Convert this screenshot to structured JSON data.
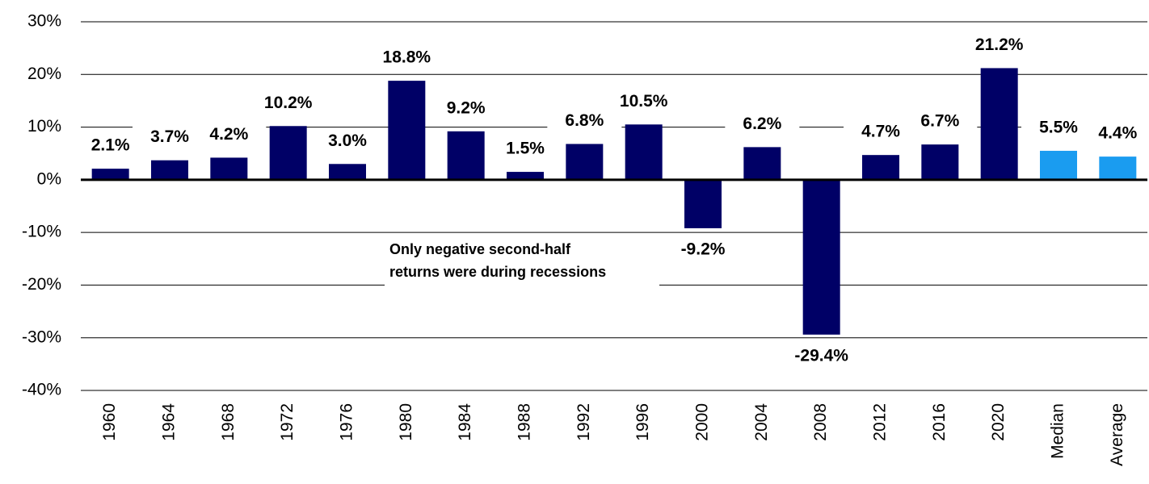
{
  "chart_data": {
    "type": "bar",
    "categories": [
      "1960",
      "1964",
      "1968",
      "1972",
      "1976",
      "1980",
      "1984",
      "1988",
      "1992",
      "1996",
      "2000",
      "2004",
      "2008",
      "2012",
      "2016",
      "2020",
      "Median",
      "Average"
    ],
    "values": [
      2.1,
      3.7,
      4.2,
      10.2,
      3.0,
      18.8,
      9.2,
      1.5,
      6.8,
      10.5,
      -9.2,
      6.2,
      -29.4,
      4.7,
      6.7,
      21.2,
      5.5,
      4.4
    ],
    "value_labels": [
      "2.1%",
      "3.7%",
      "4.2%",
      "10.2%",
      "3.0%",
      "18.8%",
      "9.2%",
      "1.5%",
      "6.8%",
      "10.5%",
      "-9.2%",
      "6.2%",
      "-29.4%",
      "4.7%",
      "6.7%",
      "21.2%",
      "5.5%",
      "4.4%"
    ],
    "colors": [
      "#000066",
      "#000066",
      "#000066",
      "#000066",
      "#000066",
      "#000066",
      "#000066",
      "#000066",
      "#000066",
      "#000066",
      "#000066",
      "#000066",
      "#000066",
      "#000066",
      "#000066",
      "#000066",
      "#1a9cf0",
      "#1a9cf0"
    ],
    "ylim": [
      -40,
      30
    ],
    "yticks": [
      {
        "value": -40,
        "label": "-40%"
      },
      {
        "value": -30,
        "label": "-30%"
      },
      {
        "value": -20,
        "label": "-20%"
      },
      {
        "value": -10,
        "label": "-10%"
      },
      {
        "value": 0,
        "label": "0%"
      },
      {
        "value": 10,
        "label": "10%"
      },
      {
        "value": 20,
        "label": "20%"
      },
      {
        "value": 30,
        "label": "30%"
      }
    ],
    "grid": true,
    "annotation": [
      "Only negative second-half",
      "returns were during recessions"
    ]
  }
}
